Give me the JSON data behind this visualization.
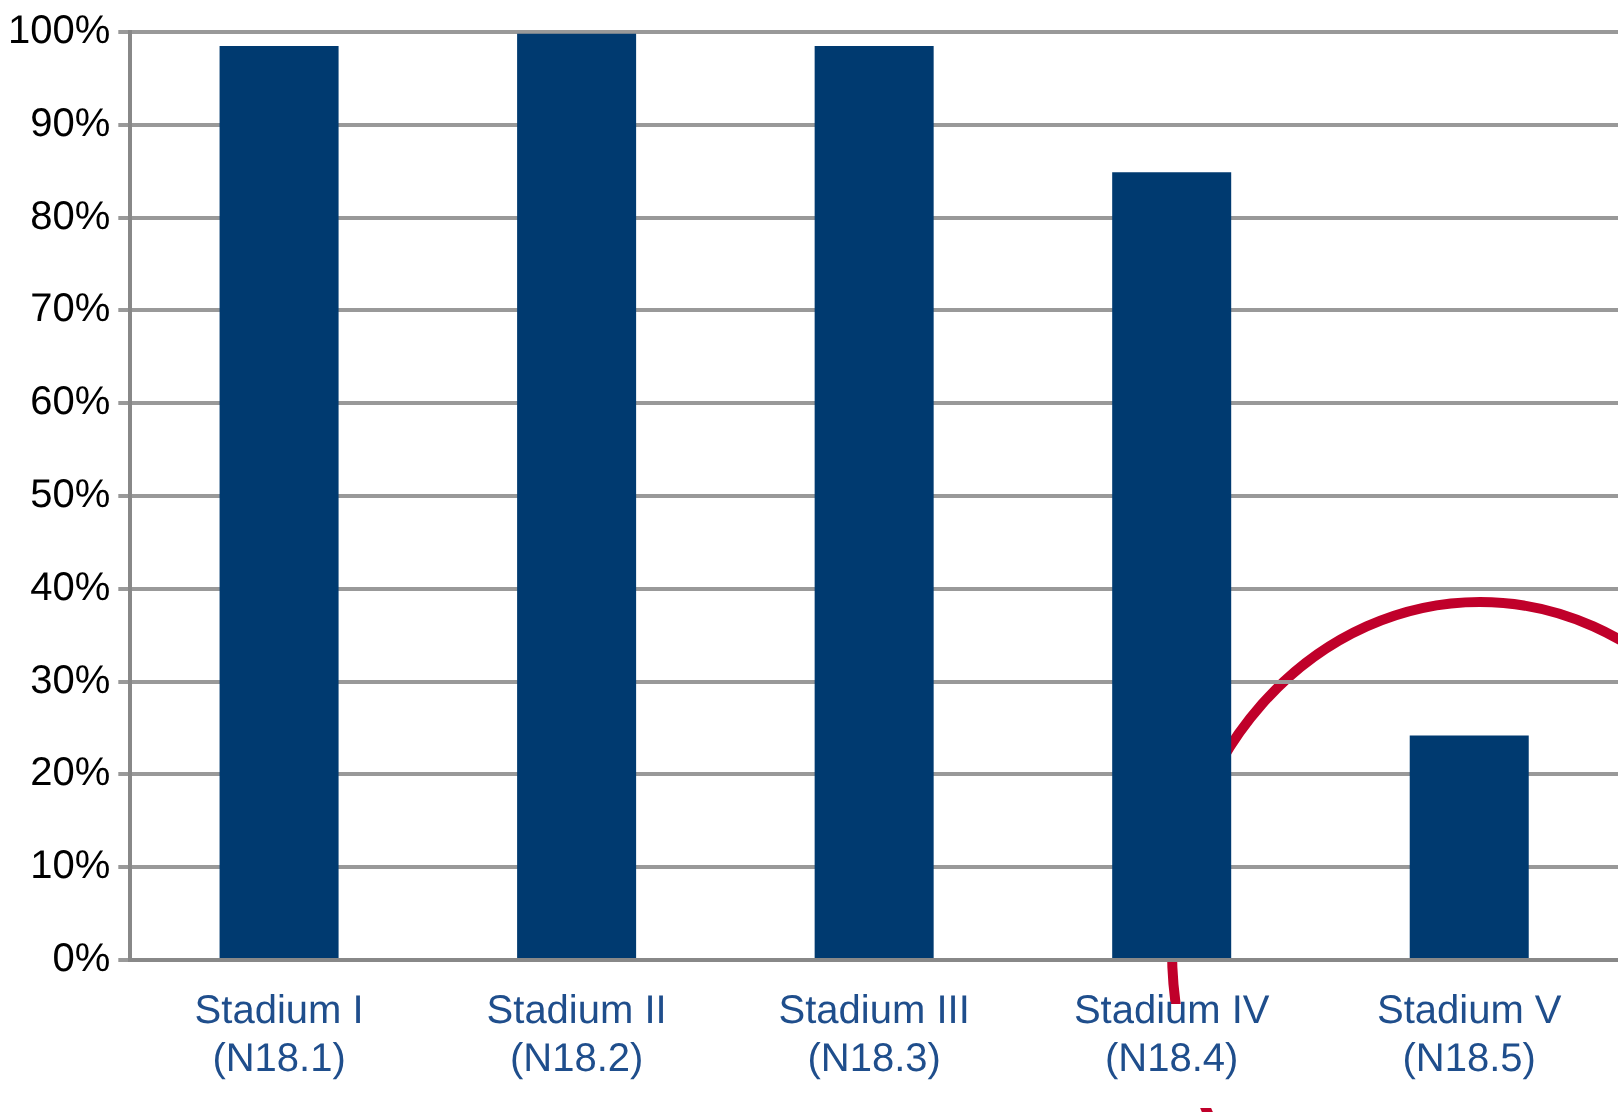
{
  "chart_data": {
    "type": "bar",
    "categories": [
      "Stadium I\n(N18.1)",
      "Stadium II\n(N18.2)",
      "Stadium III\n(N18.3)",
      "Stadium IV\n(N18.4)",
      "Stadium V\n(N18.5)"
    ],
    "values": [
      98.5,
      99.8,
      98.5,
      84.9,
      24.2
    ],
    "color": "#003a70",
    "ylim": [
      0,
      100
    ],
    "yticks": [
      {
        "value": 0,
        "label": "0%"
      },
      {
        "value": 10,
        "label": "10%"
      },
      {
        "value": 20,
        "label": "20%"
      },
      {
        "value": 30,
        "label": "30%"
      },
      {
        "value": 40,
        "label": "40%"
      },
      {
        "value": 50,
        "label": "50%"
      },
      {
        "value": 60,
        "label": "60%"
      },
      {
        "value": 70,
        "label": "70%"
      },
      {
        "value": 80,
        "label": "80%"
      },
      {
        "value": 90,
        "label": "90%"
      },
      {
        "value": 100,
        "label": "100%"
      }
    ],
    "grid": "y"
  }
}
